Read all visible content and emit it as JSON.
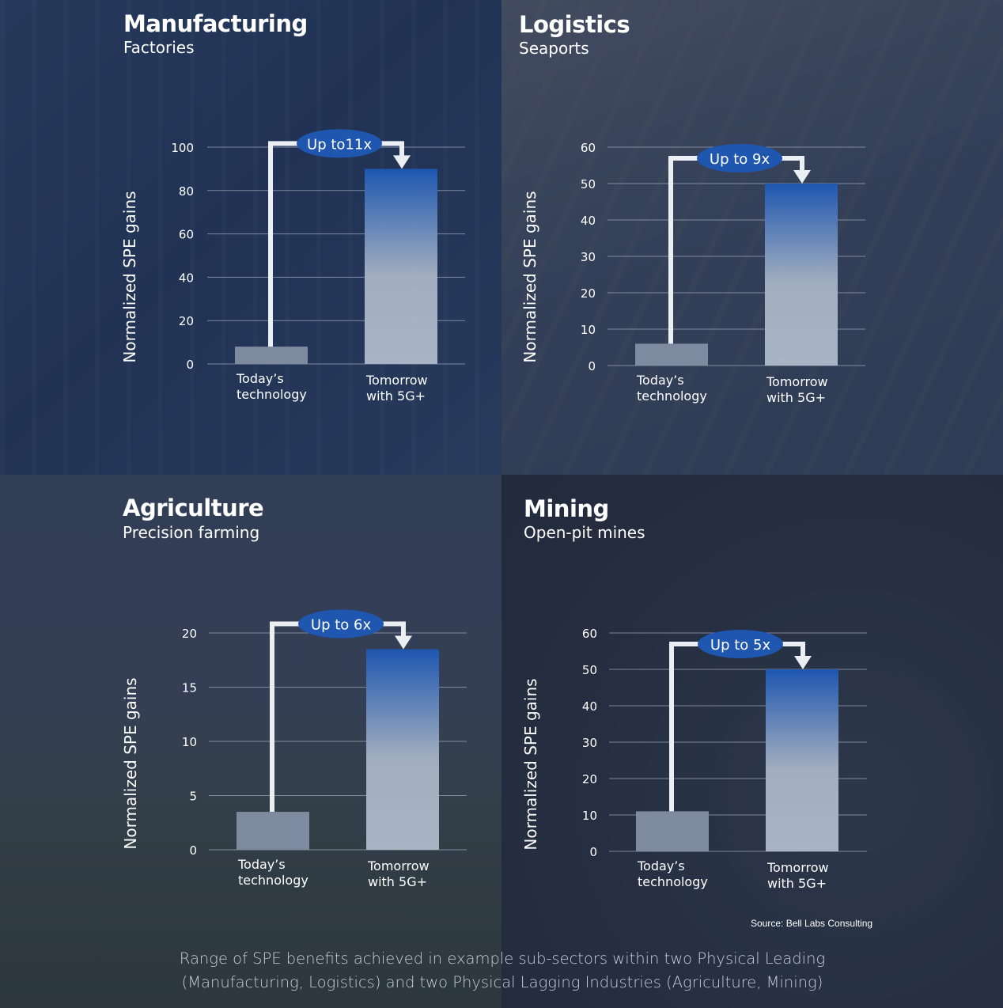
{
  "chart_data": [
    {
      "type": "bar",
      "title": "Manufacturing",
      "subtitle": "Factories",
      "ylabel": "Normalized SPE gains",
      "categories": [
        [
          "Today’s",
          "technology"
        ],
        [
          "Tomorrow",
          "with 5G+"
        ]
      ],
      "values": [
        8,
        90
      ],
      "ylim": [
        0,
        100
      ],
      "yticks": [
        0,
        20,
        40,
        60,
        80,
        100
      ],
      "annotation": "Up to11x",
      "grid": true
    },
    {
      "type": "bar",
      "title": "Logistics",
      "subtitle": "Seaports",
      "ylabel": "Normalized SPE gains",
      "categories": [
        [
          "Today’s",
          "technology"
        ],
        [
          "Tomorrow",
          "with 5G+"
        ]
      ],
      "values": [
        6,
        50
      ],
      "ylim": [
        0,
        60
      ],
      "yticks": [
        0,
        10,
        20,
        30,
        40,
        50,
        60
      ],
      "annotation": "Up to 9x",
      "grid": true
    },
    {
      "type": "bar",
      "title": "Agriculture",
      "subtitle": "Precision farming",
      "ylabel": "Normalized SPE gains",
      "categories": [
        [
          "Today’s",
          "technology"
        ],
        [
          "Tomorrow",
          "with 5G+"
        ]
      ],
      "values": [
        3.5,
        18.5
      ],
      "ylim": [
        0,
        20
      ],
      "yticks": [
        0,
        5,
        10,
        15,
        20
      ],
      "annotation": "Up to 6x",
      "grid": true
    },
    {
      "type": "bar",
      "title": "Mining",
      "subtitle": "Open-pit mines",
      "ylabel": "Normalized SPE gains",
      "categories": [
        [
          "Today’s",
          "technology"
        ],
        [
          "Tomorrow",
          "with 5G+"
        ]
      ],
      "values": [
        11,
        50
      ],
      "ylim": [
        0,
        60
      ],
      "yticks": [
        0,
        10,
        20,
        30,
        40,
        50,
        60
      ],
      "annotation": "Up to 5x",
      "grid": true
    }
  ],
  "colors": {
    "today_bar": "#7e8aa0",
    "tomorrow_top": "#1e56b0",
    "tomorrow_bottom": "#a8b4c4",
    "badge": "#1f56b0",
    "arrow": "#ebeef3",
    "grid": "#9aa4b6"
  },
  "source": "Source: Bell Labs Consulting",
  "caption_line1": "Range of SPE benefits achieved in example sub-sectors within two Physical Leading",
  "caption_line2": "(Manufacturing, Logistics) and two Physical Lagging Industries (Agriculture, Mining)"
}
